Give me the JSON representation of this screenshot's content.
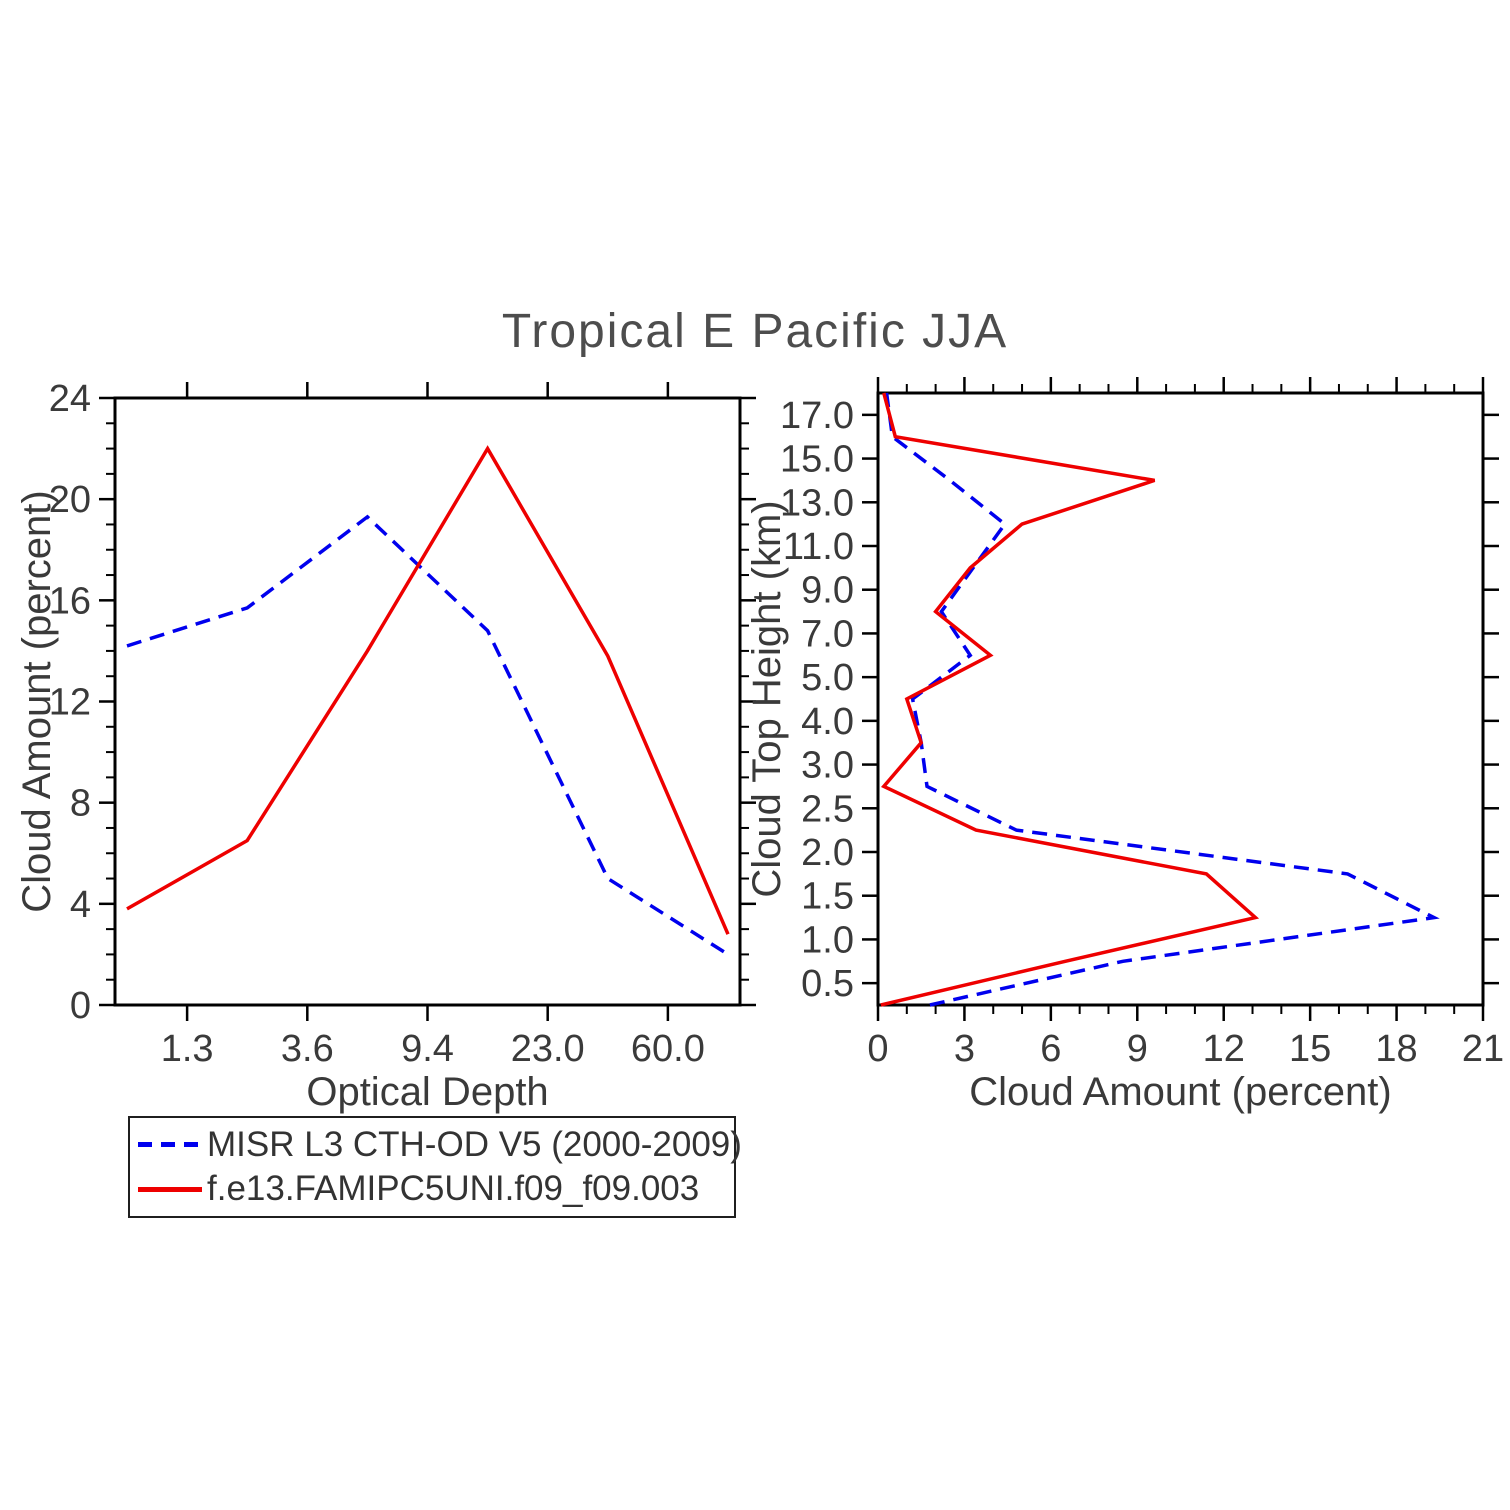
{
  "title": "Tropical E Pacific JJA",
  "chart_data": [
    {
      "type": "line",
      "panel": "left",
      "xlabel": "Optical Depth",
      "ylabel": "Cloud Amount (percent)",
      "x_axis": {
        "min": 0.4,
        "max": 5.6,
        "ticks": [
          1,
          2,
          3,
          4,
          5
        ],
        "tick_labels": [
          "1.3",
          "3.6",
          "9.4",
          "23.0",
          "60.0"
        ]
      },
      "y_axis": {
        "min": 0,
        "max": 24,
        "ticks": [
          0,
          4,
          8,
          12,
          16,
          20,
          24
        ],
        "tick_labels": [
          "0",
          "4",
          "8",
          "12",
          "16",
          "20",
          "24"
        ],
        "minor_step": 1
      },
      "series": [
        {
          "name": "MISR L3 CTH-OD V5 (2000-2009)",
          "color": "#0000ee",
          "line_style": "dashed",
          "x": [
            0.5,
            1.5,
            2.5,
            3.5,
            4.5,
            5.5
          ],
          "y": [
            14.2,
            15.7,
            19.3,
            14.8,
            5.0,
            2.0
          ]
        },
        {
          "name": "f.e13.FAMIPC5UNI.f09_f09.003",
          "color": "#ee0000",
          "line_style": "solid",
          "x": [
            0.5,
            1.5,
            2.5,
            3.5,
            4.5,
            5.5
          ],
          "y": [
            3.8,
            6.5,
            14.0,
            22.0,
            13.8,
            2.8
          ]
        }
      ]
    },
    {
      "type": "line",
      "panel": "right",
      "xlabel": "Cloud Amount (percent)",
      "ylabel": "Cloud Top Height (km)",
      "x_axis": {
        "min": 0,
        "max": 21,
        "ticks": [
          0,
          3,
          6,
          9,
          12,
          15,
          18,
          21
        ],
        "tick_labels": [
          "0",
          "3",
          "6",
          "9",
          "12",
          "15",
          "18",
          "21"
        ],
        "minor_step": 1
      },
      "y_axis": {
        "min": 0.5,
        "max": 14.5,
        "ticks": [
          1,
          2,
          3,
          4,
          5,
          6,
          7,
          8,
          9,
          10,
          11,
          12,
          13,
          14
        ],
        "tick_labels": [
          "0.5",
          "1.0",
          "1.5",
          "2.0",
          "2.5",
          "3.0",
          "4.0",
          "5.0",
          "7.0",
          "9.0",
          "11.0",
          "13.0",
          "15.0",
          "17.0"
        ]
      },
      "series": [
        {
          "name": "MISR L3 CTH-OD V5 (2000-2009)",
          "color": "#0000ee",
          "line_style": "dashed",
          "x": [
            1.8,
            8.5,
            19.3,
            16.3,
            4.8,
            1.7,
            1.5,
            1.2,
            3.2,
            2.2,
            3.3,
            4.4,
            2.5,
            0.5,
            0.3
          ],
          "y": [
            0.5,
            1.5,
            2.5,
            3.5,
            4.5,
            5.5,
            6.5,
            7.5,
            8.5,
            9.5,
            10.5,
            11.5,
            12.5,
            13.5,
            14.5
          ]
        },
        {
          "name": "f.e13.FAMIPC5UNI.f09_f09.003",
          "color": "#ee0000",
          "line_style": "solid",
          "x": [
            0.1,
            6.5,
            13.1,
            11.4,
            3.4,
            0.2,
            1.5,
            1.0,
            3.9,
            2.0,
            3.2,
            5.0,
            9.6,
            0.6,
            0.2
          ],
          "y": [
            0.5,
            1.5,
            2.5,
            3.5,
            4.5,
            5.5,
            6.5,
            7.5,
            8.5,
            9.5,
            10.5,
            11.5,
            12.5,
            13.5,
            14.5
          ]
        }
      ]
    }
  ]
}
